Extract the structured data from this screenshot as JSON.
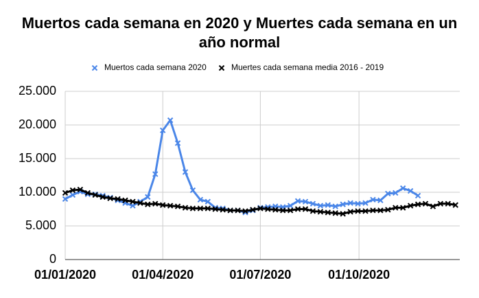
{
  "chart_data": {
    "type": "line",
    "title": "Muertos cada semana en 2020 y Muertes cada semana en un año normal",
    "x": [
      "2020-01-01",
      "2020-01-08",
      "2020-01-15",
      "2020-01-22",
      "2020-01-29",
      "2020-02-05",
      "2020-02-12",
      "2020-02-19",
      "2020-02-26",
      "2020-03-04",
      "2020-03-11",
      "2020-03-18",
      "2020-03-25",
      "2020-04-01",
      "2020-04-08",
      "2020-04-15",
      "2020-04-22",
      "2020-04-29",
      "2020-05-06",
      "2020-05-13",
      "2020-05-20",
      "2020-05-27",
      "2020-06-03",
      "2020-06-10",
      "2020-06-17",
      "2020-06-24",
      "2020-07-01",
      "2020-07-08",
      "2020-07-15",
      "2020-07-22",
      "2020-07-29",
      "2020-08-05",
      "2020-08-12",
      "2020-08-19",
      "2020-08-26",
      "2020-09-02",
      "2020-09-09",
      "2020-09-16",
      "2020-09-23",
      "2020-09-30",
      "2020-10-07",
      "2020-10-14",
      "2020-10-21",
      "2020-10-28",
      "2020-11-04",
      "2020-11-11",
      "2020-11-18",
      "2020-11-25",
      "2020-12-02",
      "2020-12-09",
      "2020-12-16",
      "2020-12-23",
      "2020-12-30"
    ],
    "series": [
      {
        "name": "Muertos cada semana 2020",
        "color": "#4a86e8",
        "values": [
          9000,
          9600,
          10100,
          9700,
          9700,
          9500,
          9200,
          8800,
          8400,
          8000,
          8600,
          9300,
          12700,
          19200,
          20700,
          17300,
          13000,
          10300,
          8900,
          8600,
          7700,
          7600,
          7300,
          7300,
          7000,
          7300,
          7700,
          7800,
          7900,
          7800,
          8000,
          8700,
          8600,
          8300,
          8000,
          8100,
          7900,
          8200,
          8400,
          8300,
          8400,
          8900,
          8800,
          9800,
          9900,
          10600,
          10200,
          9500,
          null,
          null,
          null,
          null,
          null
        ]
      },
      {
        "name": "Muertes cada semana media 2016 - 2019",
        "color": "#000000",
        "values": [
          9900,
          10300,
          10400,
          9900,
          9600,
          9300,
          9100,
          9000,
          8800,
          8600,
          8400,
          8200,
          8300,
          8100,
          8000,
          7900,
          7700,
          7600,
          7600,
          7600,
          7500,
          7400,
          7300,
          7300,
          7200,
          7400,
          7600,
          7500,
          7400,
          7300,
          7300,
          7500,
          7500,
          7200,
          7100,
          7000,
          6900,
          6800,
          7100,
          7200,
          7200,
          7300,
          7300,
          7400,
          7700,
          7700,
          8000,
          8200,
          8300,
          7900,
          8300,
          8300,
          8100
        ]
      }
    ],
    "xlim": [
      "2020-01-01",
      "2021-01-03"
    ],
    "xticks": [
      {
        "value": "2020-01-01",
        "label": "01/01/2020"
      },
      {
        "value": "2020-04-01",
        "label": "01/04/2020"
      },
      {
        "value": "2020-07-01",
        "label": "01/07/2020"
      },
      {
        "value": "2020-10-01",
        "label": "01/10/2020"
      }
    ],
    "ylim": [
      0,
      25000
    ],
    "yticks": [
      {
        "value": 0,
        "label": "0"
      },
      {
        "value": 5000,
        "label": "5.000"
      },
      {
        "value": 10000,
        "label": "10.000"
      },
      {
        "value": 15000,
        "label": "15.000"
      },
      {
        "value": 20000,
        "label": "20.000"
      },
      {
        "value": 25000,
        "label": "25.000"
      }
    ],
    "grid": true,
    "legend": "top"
  }
}
